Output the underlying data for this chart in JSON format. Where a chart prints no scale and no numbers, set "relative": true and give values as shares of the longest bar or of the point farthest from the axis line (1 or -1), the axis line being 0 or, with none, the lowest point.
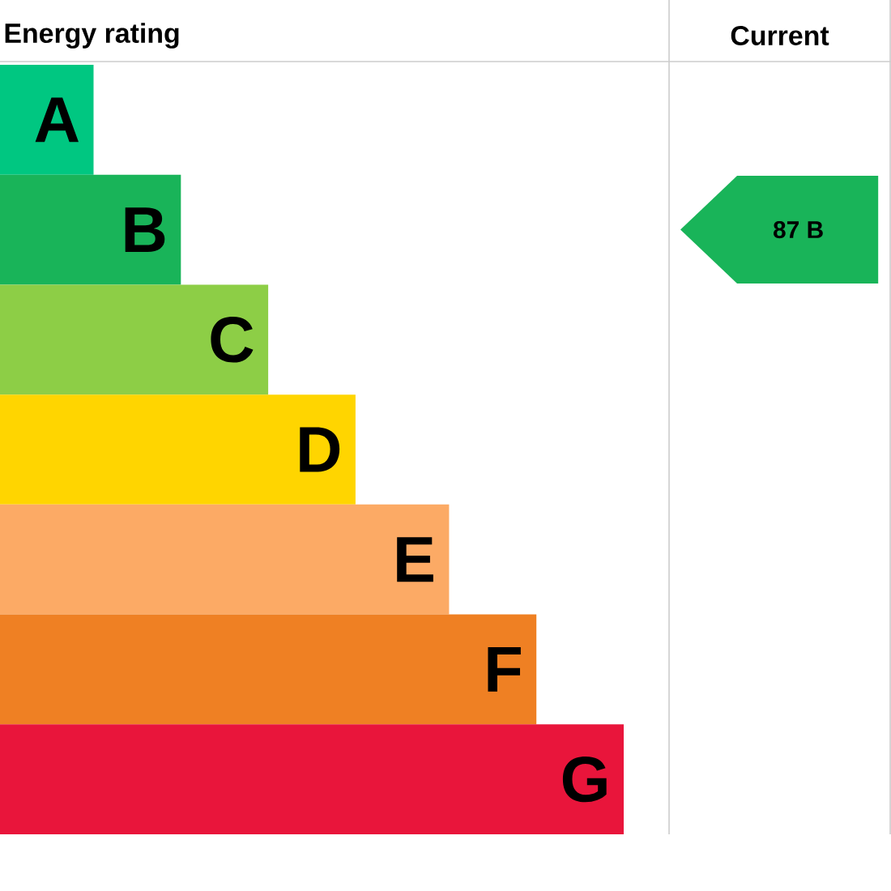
{
  "chart_data": {
    "type": "bar",
    "orientation": "horizontal",
    "relative": true,
    "title": "Energy rating",
    "categories": [
      "A",
      "B",
      "C",
      "D",
      "E",
      "F",
      "G"
    ],
    "values": [
      0.15,
      0.29,
      0.43,
      0.57,
      0.72,
      0.86,
      1
    ],
    "colors": [
      "#00c781",
      "#19b459",
      "#8dce46",
      "#ffd500",
      "#fcaa65",
      "#ef8023",
      "#e9153b"
    ],
    "annotations": [
      "Current",
      "87 B"
    ]
  }
}
